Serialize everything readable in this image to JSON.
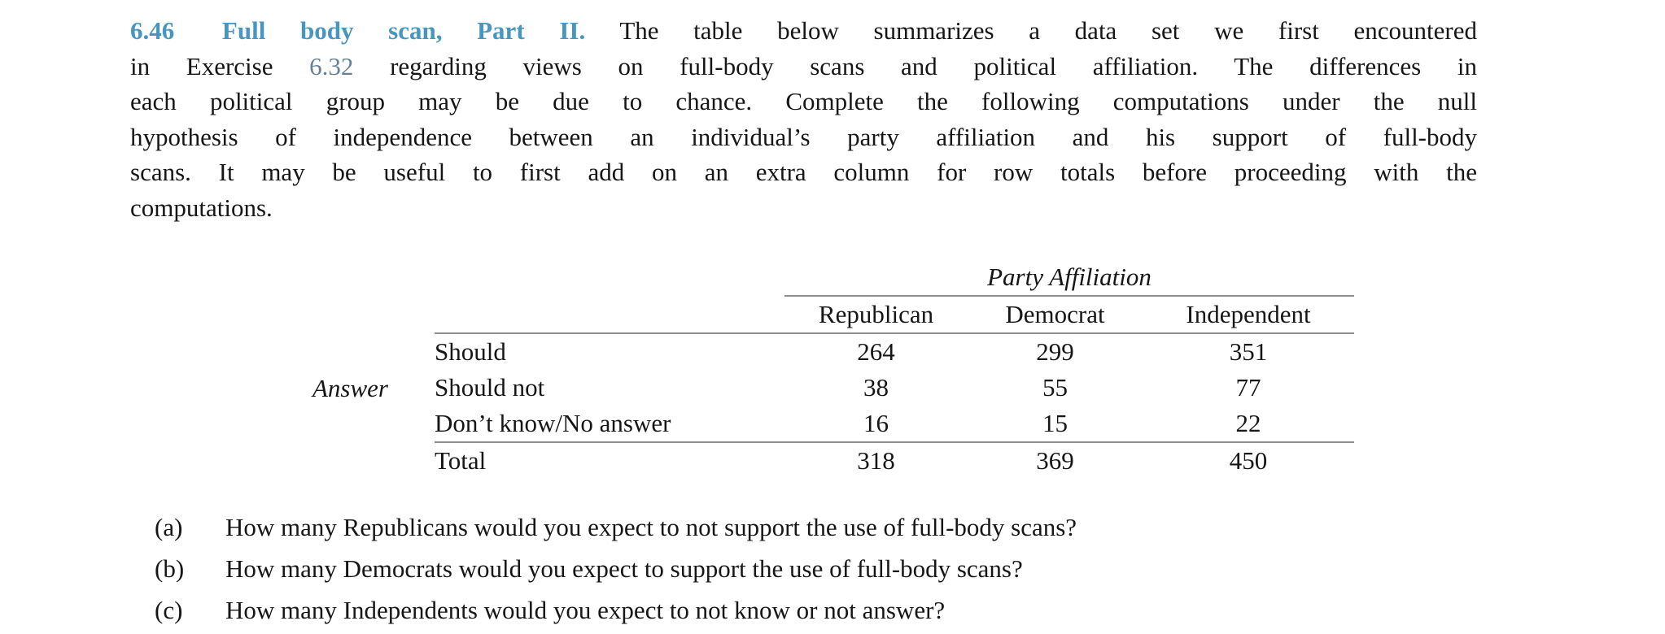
{
  "page": {
    "background": "#ffffff",
    "text_color": "#161616"
  },
  "colors": {
    "exercise_title_blue": "#4796bf",
    "exercise_ref_blue_gray": "#64809a",
    "table_rule_gray": "#8e8e8e"
  },
  "paragraph": {
    "line1": {
      "number": "6.46",
      "name": "Full body scan, Part II.",
      "rest": "The table below summarizes a data set we first encountered"
    },
    "line2": {
      "pre": "in Exercise",
      "ref": "6.32",
      "post": "regarding views on full-body scans and political affiliation. The differences in"
    },
    "line3": "each political group may be due to chance. Complete the following computations under the null",
    "line4": "hypothesis of independence between an individual’s party affiliation and his support of full-body",
    "line5": "scans. It may be useful to first add on an extra column for row totals before proceeding with the",
    "line6": "computations."
  },
  "table": {
    "group_header": "Party Affiliation",
    "row_axis_label": "Answer",
    "columns": [
      "Republican",
      "Democrat",
      "Independent"
    ],
    "rows": [
      {
        "label": "Should",
        "values": [
          "264",
          "299",
          "351"
        ]
      },
      {
        "label": "Should not",
        "values": [
          "38",
          "55",
          "77"
        ]
      },
      {
        "label": "Don’t know/No answer",
        "values": [
          "16",
          "15",
          "22"
        ]
      },
      {
        "label": "Total",
        "values": [
          "318",
          "369",
          "450"
        ]
      }
    ]
  },
  "questions": [
    {
      "label": "(a)",
      "text": "How many Republicans would you expect to not support the use of full-body scans?"
    },
    {
      "label": "(b)",
      "text": "How many Democrats would you expect to support the use of full-body scans?"
    },
    {
      "label": "(c)",
      "text": "How many Independents would you expect to not know or not answer?"
    }
  ]
}
